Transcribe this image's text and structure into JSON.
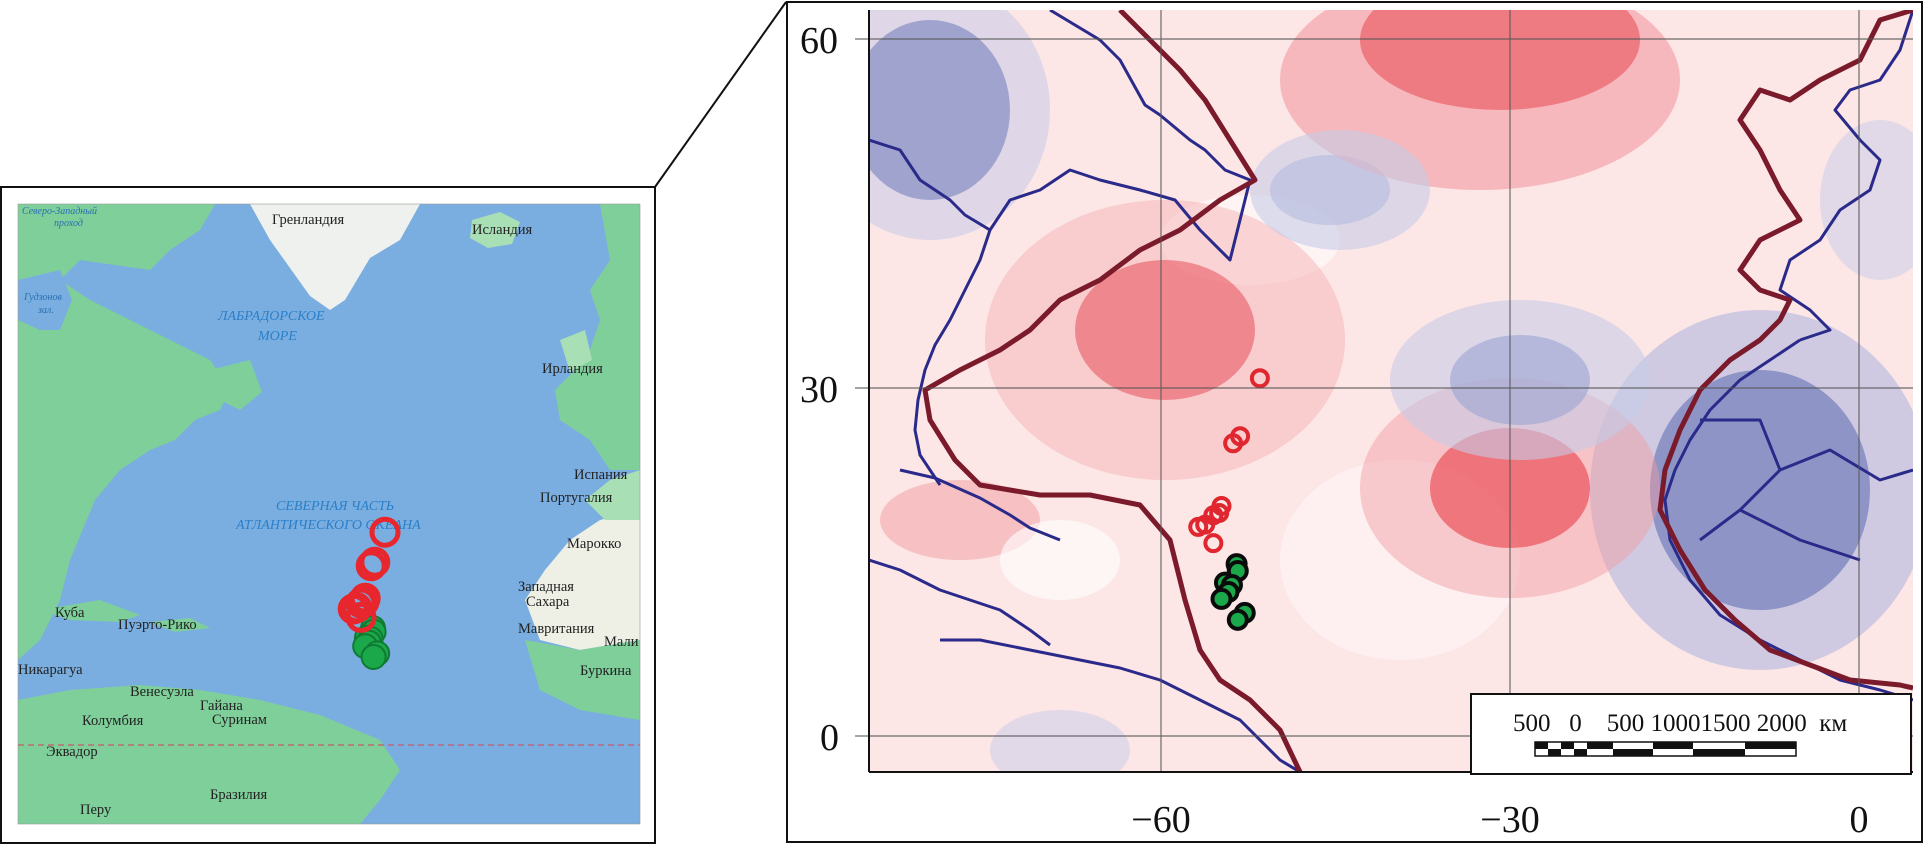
{
  "inset_map": {
    "labels": {
      "northwest_passage_1": "Северо-Западный",
      "northwest_passage_2": "проход",
      "greenland": "Гренландия",
      "iceland": "Исландия",
      "hudson_1": "Гудзонов",
      "hudson_2": "зал.",
      "labrador_1": "ЛАБРАДОРСКОЕ",
      "labrador_2": "МОРЕ",
      "ireland": "Ирландия",
      "spain": "Испания",
      "portugal": "Португалия",
      "ocean_1": "СЕВЕРНАЯ ЧАСТЬ",
      "ocean_2": "АТЛАНТИЧЕСКОГО ОКЕАНА",
      "morocco": "Марокко",
      "west_sahara_1": "Западная",
      "west_sahara_2": "Сахара",
      "cuba": "Куба",
      "puerto_rico": "Пуэрто-Рико",
      "mauritania": "Мавритания",
      "mali": "Мали",
      "nicaragua": "Никарагуа",
      "venezuela": "Венесуэла",
      "guyana": "Гайана",
      "burkina": "Буркина",
      "colombia": "Колумбия",
      "suriname": "Суринам",
      "ecuador": "Эквадор",
      "peru": "Перу",
      "brazil": "Бразилия"
    },
    "colors": {
      "ocean": "#7aaee0",
      "land": "#7fcf9a",
      "land_light": "#a8dfb4",
      "ice": "#f2f4f2",
      "desert": "#eef0e6"
    }
  },
  "main_map": {
    "y_ticks": [
      "60",
      "30",
      "0"
    ],
    "x_ticks": [
      "−60",
      "−30",
      "0"
    ],
    "scale_bar": {
      "labels": "500   0    500 10001500 2000  км"
    },
    "colors": {
      "coast": "#2a2a8a",
      "contour": "#7a1a2a",
      "warm": "#e8323c",
      "cold": "#5a6ab0"
    }
  },
  "points": {
    "red_open": [
      {
        "lon": -51.5,
        "lat": 30.8
      },
      {
        "lon": -53.2,
        "lat": 25.8
      },
      {
        "lon": -53.8,
        "lat": 25.2
      },
      {
        "lon": -54.8,
        "lat": 19.8
      },
      {
        "lon": -55.0,
        "lat": 19.2
      },
      {
        "lon": -55.5,
        "lat": 19.0
      },
      {
        "lon": -56.2,
        "lat": 18.2
      },
      {
        "lon": -56.8,
        "lat": 18.0
      },
      {
        "lon": -55.5,
        "lat": 16.6
      }
    ],
    "green_filled": [
      {
        "lon": -53.5,
        "lat": 14.8
      },
      {
        "lon": -53.4,
        "lat": 14.2
      },
      {
        "lon": -54.5,
        "lat": 13.2
      },
      {
        "lon": -53.9,
        "lat": 13.0
      },
      {
        "lon": -54.2,
        "lat": 12.4
      },
      {
        "lon": -54.8,
        "lat": 11.8
      },
      {
        "lon": -52.8,
        "lat": 10.6
      },
      {
        "lon": -53.4,
        "lat": 10.0
      }
    ]
  }
}
